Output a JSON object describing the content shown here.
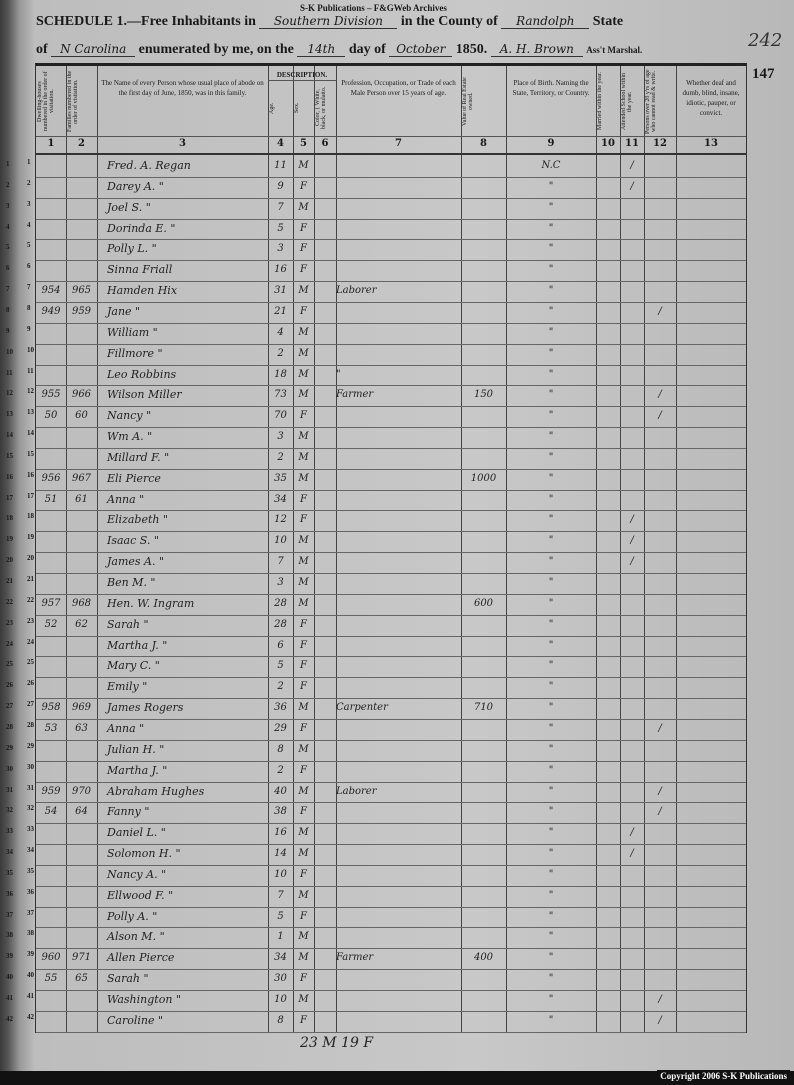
{
  "watermark": "S-K Publications – F&GWeb Archives",
  "header": {
    "schedule_label": "SCHEDULE 1.—Free Inhabitants in",
    "division": "Southern Division",
    "county_label": "in the County of",
    "county": "Randolph",
    "state_label": "State",
    "of_label": "of",
    "state": "N Carolina",
    "enumerated_label": "enumerated by me, on the",
    "day": "14th",
    "day_label": "day of",
    "month": "October",
    "year": "1850.",
    "marshal": "A. H. Brown",
    "marshal_label": "Ass't Marshal.",
    "stamp": "242"
  },
  "page_number": "147",
  "columns": [
    {
      "num": "1",
      "label": "Dwelling-houses numbered in the order of visitation."
    },
    {
      "num": "2",
      "label": "Families numbered in the order of visitation."
    },
    {
      "num": "3",
      "label": "The Name of every Person whose usual place of abode on the first day of June, 1850, was in this family."
    },
    {
      "num": "4",
      "label": "Age."
    },
    {
      "num": "5",
      "label": "Sex."
    },
    {
      "num": "6",
      "label": "Color, { White, black, or mulatto."
    },
    {
      "num": "7",
      "label": "Profession, Occupation, or Trade of each Male Person over 15 years of age."
    },
    {
      "num": "8",
      "label": "Value of Real Estate owned."
    },
    {
      "num": "9",
      "label": "Place of Birth. Naming the State, Territory, or Country."
    },
    {
      "num": "10",
      "label": "Married within the year."
    },
    {
      "num": "11",
      "label": "Attended School within the year."
    },
    {
      "num": "12",
      "label": "Persons over 20 y'rs of age who cannot read & write."
    },
    {
      "num": "13",
      "label": "Whether deaf and dumb, blind, insane, idiotic, pauper, or convict."
    }
  ],
  "description_label": "DESCRIPTION.",
  "rows": [
    {
      "line": "1",
      "dwelling": "",
      "family": "",
      "name": "Fred. A. Regan",
      "age": "11",
      "sex": "M",
      "occupation": "",
      "value": "",
      "birth": "N.C",
      "school": "/",
      "illiterate": ""
    },
    {
      "line": "2",
      "dwelling": "",
      "family": "",
      "name": "Darey A.   \"",
      "age": "9",
      "sex": "F",
      "occupation": "",
      "value": "",
      "birth": "\"",
      "school": "/",
      "illiterate": ""
    },
    {
      "line": "3",
      "dwelling": "",
      "family": "",
      "name": "Joel S.   \"",
      "age": "7",
      "sex": "M",
      "occupation": "",
      "value": "",
      "birth": "\"",
      "school": "",
      "illiterate": ""
    },
    {
      "line": "4",
      "dwelling": "",
      "family": "",
      "name": "Dorinda E.   \"",
      "age": "5",
      "sex": "F",
      "occupation": "",
      "value": "",
      "birth": "\"",
      "school": "",
      "illiterate": ""
    },
    {
      "line": "5",
      "dwelling": "",
      "family": "",
      "name": "Polly L.   \"",
      "age": "3",
      "sex": "F",
      "occupation": "",
      "value": "",
      "birth": "\"",
      "school": "",
      "illiterate": ""
    },
    {
      "line": "6",
      "dwelling": "",
      "family": "",
      "name": "Sinna Friall",
      "age": "16",
      "sex": "F",
      "occupation": "",
      "value": "",
      "birth": "\"",
      "school": "",
      "illiterate": ""
    },
    {
      "line": "7",
      "dwelling": "954",
      "family": "965",
      "name": "Hamden Hix",
      "age": "31",
      "sex": "M",
      "occupation": "Laborer",
      "value": "",
      "birth": "\"",
      "school": "",
      "illiterate": ""
    },
    {
      "line": "8",
      "dwelling": "949",
      "family": "959",
      "name": "Jane   \"",
      "age": "21",
      "sex": "F",
      "occupation": "",
      "value": "",
      "birth": "\"",
      "school": "",
      "illiterate": "/"
    },
    {
      "line": "9",
      "dwelling": "",
      "family": "",
      "name": "William   \"",
      "age": "4",
      "sex": "M",
      "occupation": "",
      "value": "",
      "birth": "\"",
      "school": "",
      "illiterate": ""
    },
    {
      "line": "10",
      "dwelling": "",
      "family": "",
      "name": "Fillmore   \"",
      "age": "2",
      "sex": "M",
      "occupation": "",
      "value": "",
      "birth": "\"",
      "school": "",
      "illiterate": ""
    },
    {
      "line": "11",
      "dwelling": "",
      "family": "",
      "name": "Leo Robbins",
      "age": "18",
      "sex": "M",
      "occupation": "\"",
      "value": "",
      "birth": "\"",
      "school": "",
      "illiterate": ""
    },
    {
      "line": "12",
      "dwelling": "955",
      "family": "966",
      "name": "Wilson Miller",
      "age": "73",
      "sex": "M",
      "occupation": "Farmer",
      "value": "150",
      "birth": "\"",
      "school": "",
      "illiterate": "/"
    },
    {
      "line": "13",
      "dwelling": "50",
      "family": "60",
      "name": "Nancy   \"",
      "age": "70",
      "sex": "F",
      "occupation": "",
      "value": "",
      "birth": "\"",
      "school": "",
      "illiterate": "/"
    },
    {
      "line": "14",
      "dwelling": "",
      "family": "",
      "name": "Wm A.   \"",
      "age": "3",
      "sex": "M",
      "occupation": "",
      "value": "",
      "birth": "\"",
      "school": "",
      "illiterate": ""
    },
    {
      "line": "15",
      "dwelling": "",
      "family": "",
      "name": "Millard F.   \"",
      "age": "2",
      "sex": "M",
      "occupation": "",
      "value": "",
      "birth": "\"",
      "school": "",
      "illiterate": ""
    },
    {
      "line": "16",
      "dwelling": "956",
      "family": "967",
      "name": "Eli Pierce",
      "age": "35",
      "sex": "M",
      "occupation": "",
      "value": "1000",
      "birth": "\"",
      "school": "",
      "illiterate": ""
    },
    {
      "line": "17",
      "dwelling": "51",
      "family": "61",
      "name": "Anna   \"",
      "age": "34",
      "sex": "F",
      "occupation": "",
      "value": "",
      "birth": "\"",
      "school": "",
      "illiterate": ""
    },
    {
      "line": "18",
      "dwelling": "",
      "family": "",
      "name": "Elizabeth   \"",
      "age": "12",
      "sex": "F",
      "occupation": "",
      "value": "",
      "birth": "\"",
      "school": "/",
      "illiterate": ""
    },
    {
      "line": "19",
      "dwelling": "",
      "family": "",
      "name": "Isaac S.   \"",
      "age": "10",
      "sex": "M",
      "occupation": "",
      "value": "",
      "birth": "\"",
      "school": "/",
      "illiterate": ""
    },
    {
      "line": "20",
      "dwelling": "",
      "family": "",
      "name": "James A.   \"",
      "age": "7",
      "sex": "M",
      "occupation": "",
      "value": "",
      "birth": "\"",
      "school": "/",
      "illiterate": ""
    },
    {
      "line": "21",
      "dwelling": "",
      "family": "",
      "name": "Ben M.   \"",
      "age": "3",
      "sex": "M",
      "occupation": "",
      "value": "",
      "birth": "\"",
      "school": "",
      "illiterate": ""
    },
    {
      "line": "22",
      "dwelling": "957",
      "family": "968",
      "name": "Hen. W. Ingram",
      "age": "28",
      "sex": "M",
      "occupation": "",
      "value": "600",
      "birth": "\"",
      "school": "",
      "illiterate": ""
    },
    {
      "line": "23",
      "dwelling": "52",
      "family": "62",
      "name": "Sarah   \"",
      "age": "28",
      "sex": "F",
      "occupation": "",
      "value": "",
      "birth": "\"",
      "school": "",
      "illiterate": ""
    },
    {
      "line": "24",
      "dwelling": "",
      "family": "",
      "name": "Martha J.   \"",
      "age": "6",
      "sex": "F",
      "occupation": "",
      "value": "",
      "birth": "\"",
      "school": "",
      "illiterate": ""
    },
    {
      "line": "25",
      "dwelling": "",
      "family": "",
      "name": "Mary C.   \"",
      "age": "5",
      "sex": "F",
      "occupation": "",
      "value": "",
      "birth": "\"",
      "school": "",
      "illiterate": ""
    },
    {
      "line": "26",
      "dwelling": "",
      "family": "",
      "name": "Emily   \"",
      "age": "2",
      "sex": "F",
      "occupation": "",
      "value": "",
      "birth": "\"",
      "school": "",
      "illiterate": ""
    },
    {
      "line": "27",
      "dwelling": "958",
      "family": "969",
      "name": "James Rogers",
      "age": "36",
      "sex": "M",
      "occupation": "Carpenter",
      "value": "710",
      "birth": "\"",
      "school": "",
      "illiterate": ""
    },
    {
      "line": "28",
      "dwelling": "53",
      "family": "63",
      "name": "Anna   \"",
      "age": "29",
      "sex": "F",
      "occupation": "",
      "value": "",
      "birth": "\"",
      "school": "",
      "illiterate": "/"
    },
    {
      "line": "29",
      "dwelling": "",
      "family": "",
      "name": "Julian H.   \"",
      "age": "8",
      "sex": "M",
      "occupation": "",
      "value": "",
      "birth": "\"",
      "school": "",
      "illiterate": ""
    },
    {
      "line": "30",
      "dwelling": "",
      "family": "",
      "name": "Martha J.   \"",
      "age": "2",
      "sex": "F",
      "occupation": "",
      "value": "",
      "birth": "\"",
      "school": "",
      "illiterate": ""
    },
    {
      "line": "31",
      "dwelling": "959",
      "family": "970",
      "name": "Abraham Hughes",
      "age": "40",
      "sex": "M",
      "occupation": "Laborer",
      "value": "",
      "birth": "\"",
      "school": "",
      "illiterate": "/"
    },
    {
      "line": "32",
      "dwelling": "54",
      "family": "64",
      "name": "Fanny   \"",
      "age": "38",
      "sex": "F",
      "occupation": "",
      "value": "",
      "birth": "\"",
      "school": "",
      "illiterate": "/"
    },
    {
      "line": "33",
      "dwelling": "",
      "family": "",
      "name": "Daniel L.   \"",
      "age": "16",
      "sex": "M",
      "occupation": "",
      "value": "",
      "birth": "\"",
      "school": "/",
      "illiterate": ""
    },
    {
      "line": "34",
      "dwelling": "",
      "family": "",
      "name": "Solomon H.   \"",
      "age": "14",
      "sex": "M",
      "occupation": "",
      "value": "",
      "birth": "\"",
      "school": "/",
      "illiterate": ""
    },
    {
      "line": "35",
      "dwelling": "",
      "family": "",
      "name": "Nancy A.   \"",
      "age": "10",
      "sex": "F",
      "occupation": "",
      "value": "",
      "birth": "\"",
      "school": "",
      "illiterate": ""
    },
    {
      "line": "36",
      "dwelling": "",
      "family": "",
      "name": "Ellwood F.   \"",
      "age": "7",
      "sex": "M",
      "occupation": "",
      "value": "",
      "birth": "\"",
      "school": "",
      "illiterate": ""
    },
    {
      "line": "37",
      "dwelling": "",
      "family": "",
      "name": "Polly A.   \"",
      "age": "5",
      "sex": "F",
      "occupation": "",
      "value": "",
      "birth": "\"",
      "school": "",
      "illiterate": ""
    },
    {
      "line": "38",
      "dwelling": "",
      "family": "",
      "name": "Alson M.   \"",
      "age": "1",
      "sex": "M",
      "occupation": "",
      "value": "",
      "birth": "\"",
      "school": "",
      "illiterate": ""
    },
    {
      "line": "39",
      "dwelling": "960",
      "family": "971",
      "name": "Allen Pierce",
      "age": "34",
      "sex": "M",
      "occupation": "Farmer",
      "value": "400",
      "birth": "\"",
      "school": "",
      "illiterate": ""
    },
    {
      "line": "40",
      "dwelling": "55",
      "family": "65",
      "name": "Sarah   \"",
      "age": "30",
      "sex": "F",
      "occupation": "",
      "value": "",
      "birth": "\"",
      "school": "",
      "illiterate": ""
    },
    {
      "line": "41",
      "dwelling": "",
      "family": "",
      "name": "Washington   \"",
      "age": "10",
      "sex": "M",
      "occupation": "",
      "value": "",
      "birth": "\"",
      "school": "",
      "illiterate": "/"
    },
    {
      "line": "42",
      "dwelling": "",
      "family": "",
      "name": "Caroline   \"",
      "age": "8",
      "sex": "F",
      "occupation": "",
      "value": "",
      "birth": "\"",
      "school": "",
      "illiterate": "/"
    }
  ],
  "tally": "23 M  19 F",
  "copyright": "Copyright 2006 S-K Publications"
}
